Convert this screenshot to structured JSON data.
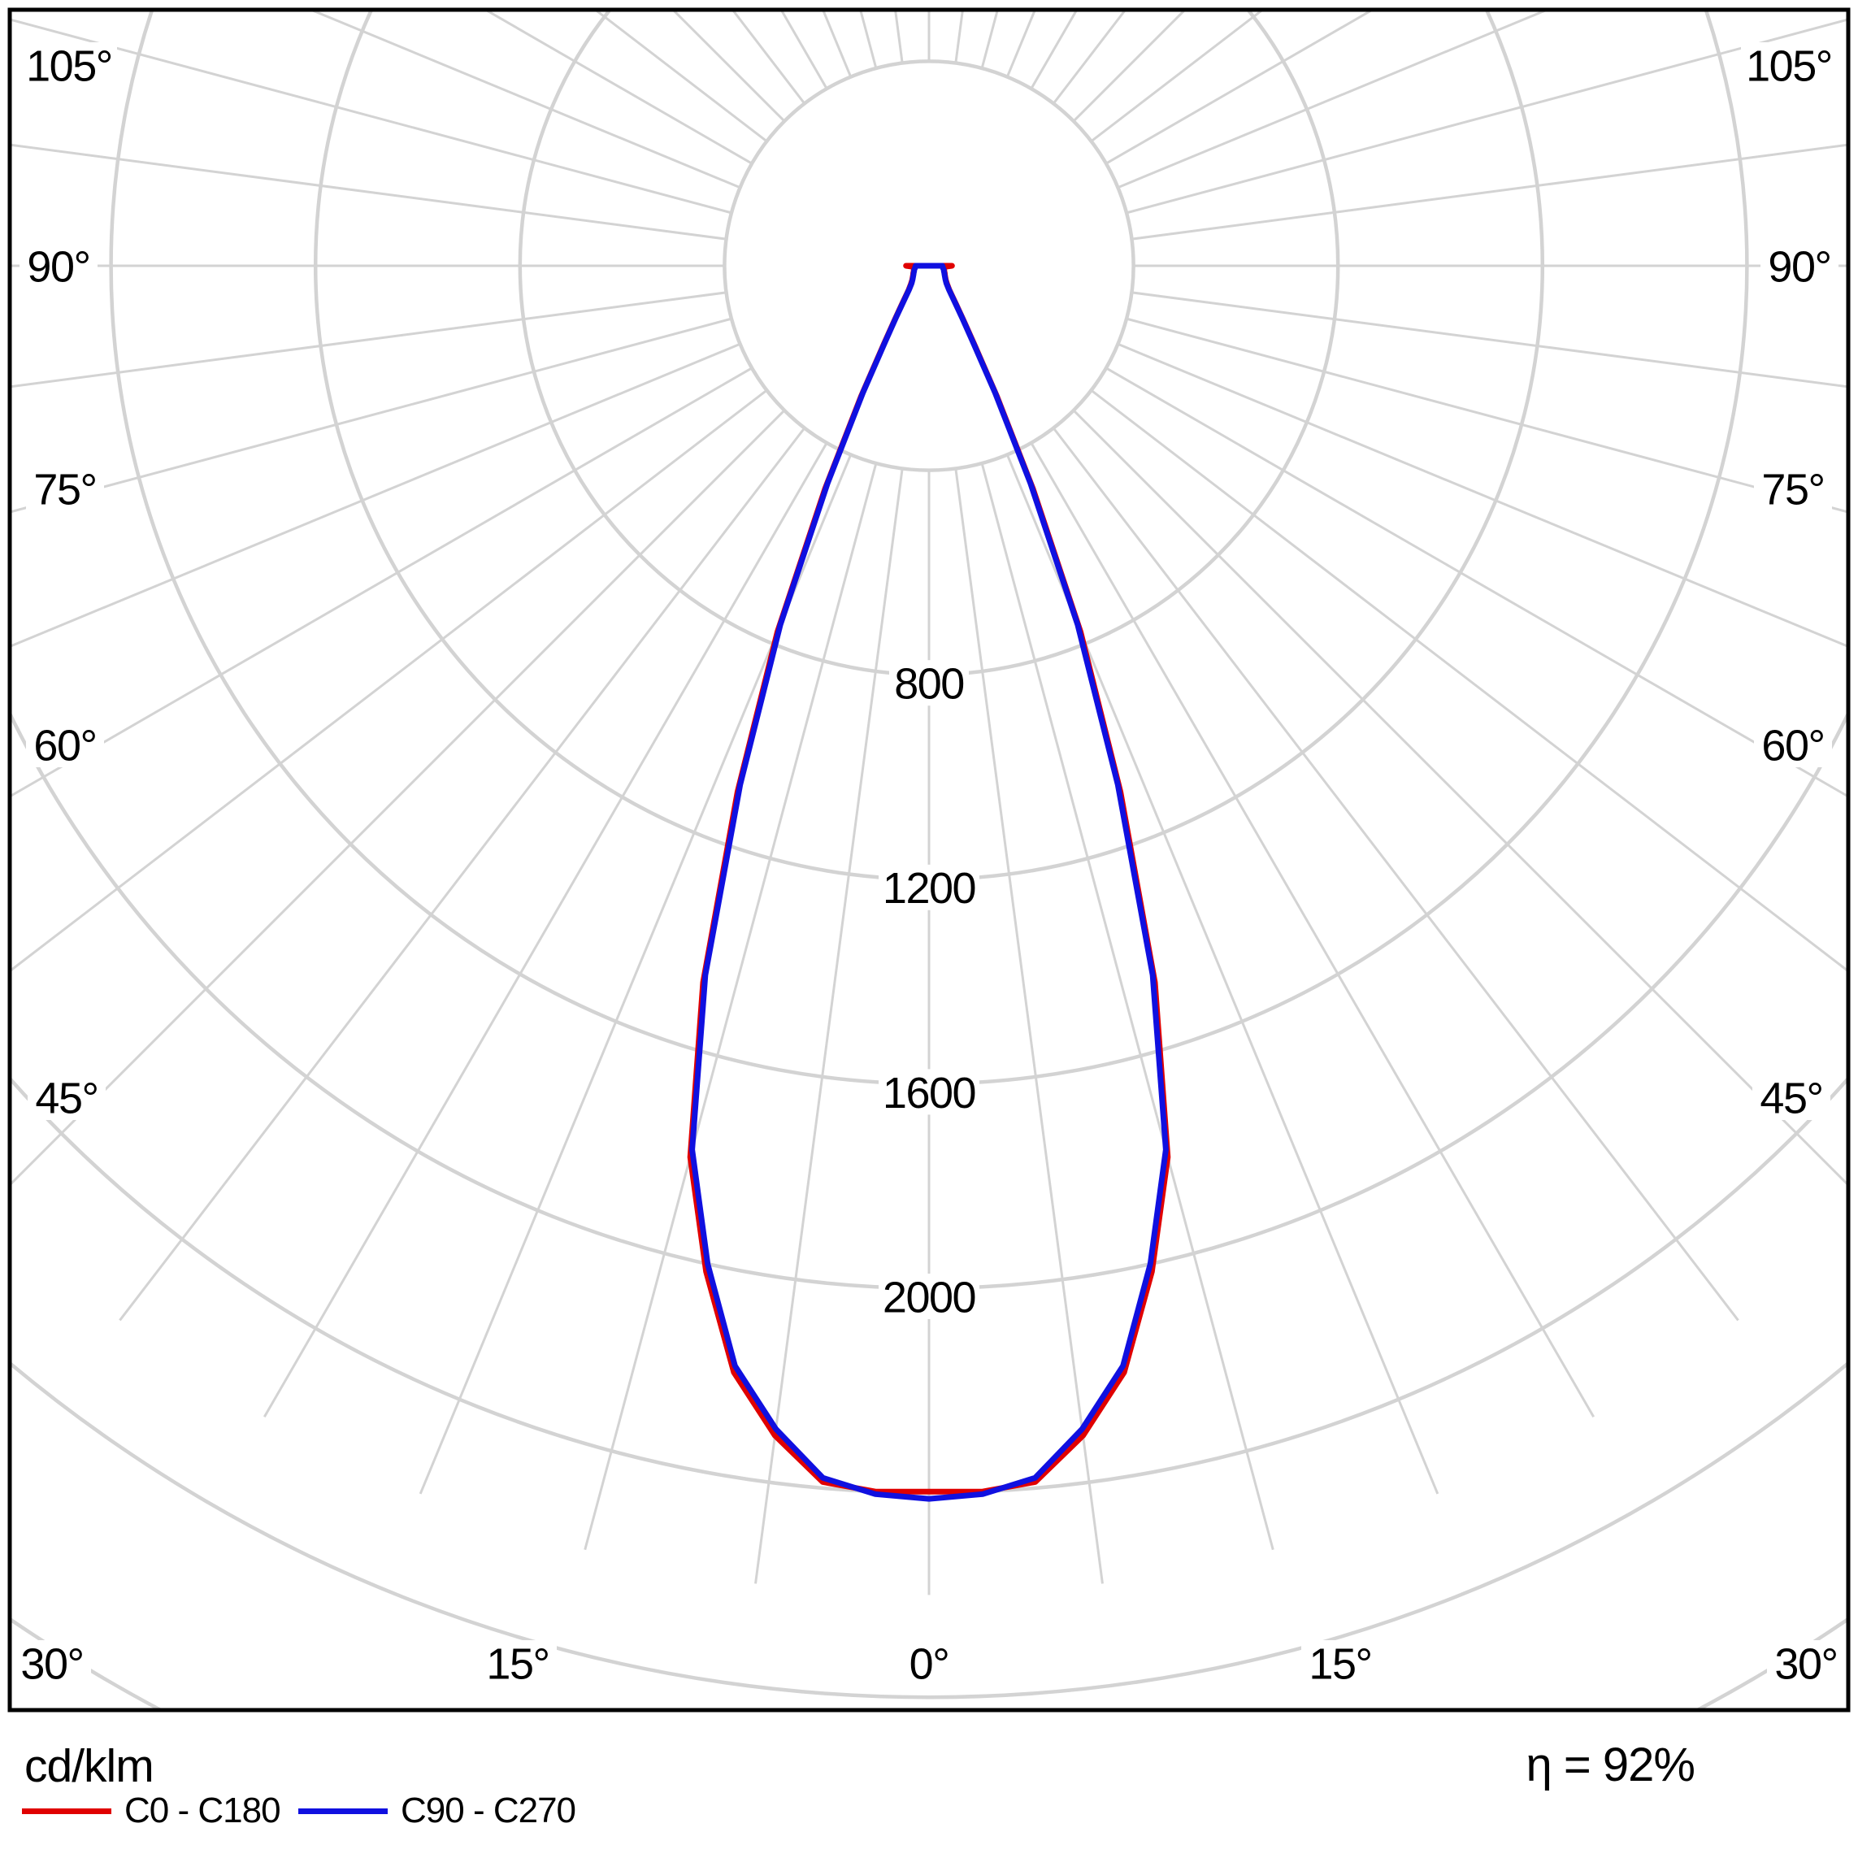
{
  "footer": {
    "unit_label": "cd/klm",
    "efficiency_label": "η = 92%"
  },
  "legend": [
    {
      "label": "C0 - C180",
      "color": "#e00000"
    },
    {
      "label": "C90 - C270",
      "color": "#1010e0"
    }
  ],
  "chart_data": {
    "type": "polar_intensity_curve",
    "unit": "cd/klm",
    "efficiency": "η = 92%",
    "angular_axis": {
      "labels_deg": [
        105,
        90,
        75,
        60,
        45,
        30,
        15,
        0
      ],
      "label_suffix": "°",
      "spoke_step_deg": 7.5,
      "gamma_zero_direction": "down",
      "symmetric_labels": true
    },
    "radial_axis": {
      "ring_step": 400,
      "rings_drawn": [
        400,
        800,
        1200,
        1600,
        2000,
        2400,
        2800,
        3200
      ],
      "ring_labels": [
        800,
        1200,
        1600,
        2000
      ]
    },
    "grid": {
      "color": "#d3d3d3",
      "border_color": "#000000",
      "background": "#ffffff"
    },
    "gamma_deg": [
      0,
      2.5,
      5,
      7.5,
      10,
      12.5,
      15,
      17.5,
      20,
      22.5,
      25,
      27.5,
      30,
      32.5,
      35,
      40,
      45,
      50,
      55,
      60,
      65,
      70,
      75,
      80,
      85,
      90
    ],
    "series": [
      {
        "name": "C0 - C180",
        "color": "#e00000",
        "values": [
          2398,
          2400,
          2388,
          2308,
          2198,
          2015,
          1805,
          1470,
          1095,
          775,
          482,
          288,
          176,
          124,
          93,
          62,
          50,
          43,
          39,
          36,
          34,
          32,
          31,
          29,
          28,
          45
        ]
      },
      {
        "name": "C90 - C270",
        "color": "#1010e0",
        "values": [
          2412,
          2405,
          2380,
          2295,
          2185,
          2000,
          1790,
          1455,
          1080,
          760,
          470,
          280,
          170,
          120,
          90,
          60,
          48,
          42,
          38,
          35,
          33,
          31,
          30,
          28,
          27,
          26
        ]
      }
    ]
  }
}
